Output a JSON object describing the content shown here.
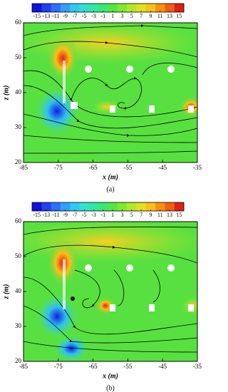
{
  "chart_data": [
    {
      "type": "streamline",
      "caption": "(a)",
      "xlabel": "x (m)",
      "ylabel": "z (m)",
      "xlim": [
        -85,
        -35
      ],
      "xticks": [
        -85,
        -75,
        -65,
        -55,
        -45,
        -35
      ],
      "ylim": [
        20,
        60
      ],
      "yticks": [
        20,
        30,
        40,
        50,
        60
      ],
      "clim": [
        -16,
        16
      ],
      "cticks": [
        -15,
        -13,
        -11,
        -9,
        -7,
        -5,
        -3,
        -1,
        1,
        3,
        5,
        7,
        9,
        11,
        13,
        15
      ],
      "colors": [
        "#1010e0",
        "#2040f0",
        "#2a70f8",
        "#30a0f8",
        "#30c8f0",
        "#30e0d0",
        "#30e8a0",
        "#38e870",
        "#50e840",
        "#80e830",
        "#b0e828",
        "#e0e020",
        "#f8c018",
        "#f89010",
        "#f06010",
        "#e02010"
      ]
    },
    {
      "type": "streamline",
      "caption": "(b)",
      "xlabel": "x (m)",
      "ylabel": "z (m)",
      "xlim": [
        -85,
        -35
      ],
      "xticks": [
        -85,
        -75,
        -65,
        -55,
        -45,
        -35
      ],
      "ylim": [
        20,
        60
      ],
      "yticks": [
        20,
        30,
        40,
        50,
        60
      ],
      "clim": [
        -16,
        16
      ],
      "cticks": [
        -15,
        -13,
        -11,
        -9,
        -7,
        -5,
        -3,
        -1,
        1,
        3,
        5,
        7,
        9,
        11,
        13,
        15
      ],
      "colors": [
        "#1010e0",
        "#2040f0",
        "#2a70f8",
        "#30a0f8",
        "#30c8f0",
        "#30e0d0",
        "#30e8a0",
        "#38e870",
        "#50e840",
        "#80e830",
        "#b0e828",
        "#e0e020",
        "#f8c018",
        "#f89010",
        "#f06010",
        "#e02010"
      ]
    }
  ]
}
